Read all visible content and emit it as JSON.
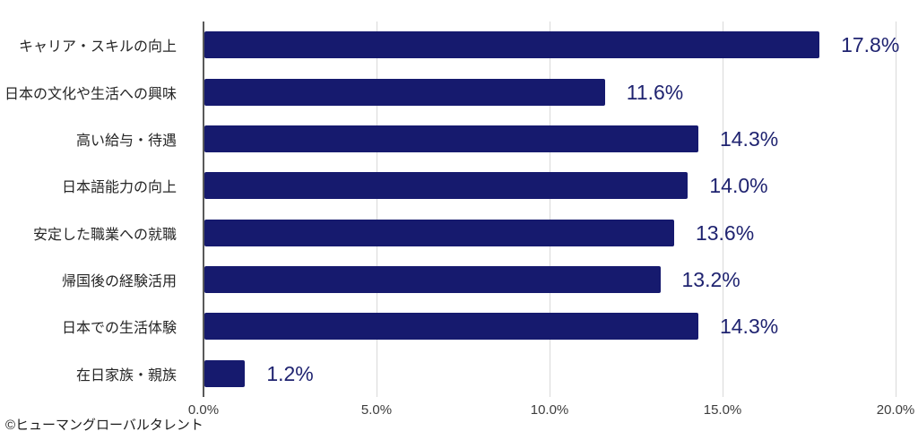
{
  "chart_data": {
    "type": "bar",
    "orientation": "horizontal",
    "title": "",
    "xlabel": "",
    "ylabel": "",
    "categories": [
      "キャリア・スキルの向上",
      "日本の文化や生活への興味",
      "高い給与・待遇",
      "日本語能力の向上",
      "安定した職業への就職",
      "帰国後の経験活用",
      "日本での生活体験",
      "在日家族・親族"
    ],
    "values": [
      17.8,
      11.6,
      14.3,
      14.0,
      13.6,
      13.2,
      14.3,
      1.2
    ],
    "value_labels": [
      "17.8%",
      "11.6%",
      "14.3%",
      "14.0%",
      "13.6%",
      "13.2%",
      "14.3%",
      "1.2%"
    ],
    "xlim": [
      0,
      20
    ],
    "x_tick_values": [
      0,
      5,
      10,
      15,
      20
    ],
    "x_tick_labels": [
      "0.0%",
      "5.0%",
      "10.0%",
      "15.0%",
      "20.0%"
    ],
    "grid": true,
    "legend": false,
    "bar_color": "#161a6e",
    "value_label_color": "#1f2370",
    "gridline_color": "#d9d9d9",
    "axis_line_color": "#595959"
  },
  "footer": {
    "copyright": "©ヒューマングローバルタレント"
  }
}
